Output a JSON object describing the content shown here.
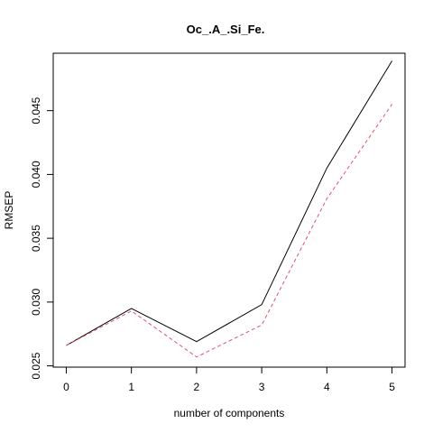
{
  "chart_data": {
    "type": "line",
    "title": "Oc_.A_.Si_Fe.",
    "xlabel": "number of components",
    "ylabel": "RMSEP",
    "x": [
      0,
      1,
      2,
      3,
      4,
      5
    ],
    "x_ticks": [
      "0",
      "1",
      "2",
      "3",
      "4",
      "5"
    ],
    "y_ticks": [
      "0.025",
      "0.030",
      "0.035",
      "0.040",
      "0.045"
    ],
    "xlim": [
      -0.2,
      5.2
    ],
    "ylim": [
      0.0249,
      0.0495
    ],
    "grid": false,
    "legend": "none",
    "series": [
      {
        "values": [
          0.0266,
          0.0295,
          0.0269,
          0.0298,
          0.0405,
          0.0489
        ],
        "color": "#000000",
        "style": "solid"
      },
      {
        "values": [
          0.0266,
          0.0293,
          0.0257,
          0.0282,
          0.0381,
          0.0455
        ],
        "color": "#df536b",
        "style": "dashed"
      }
    ]
  }
}
